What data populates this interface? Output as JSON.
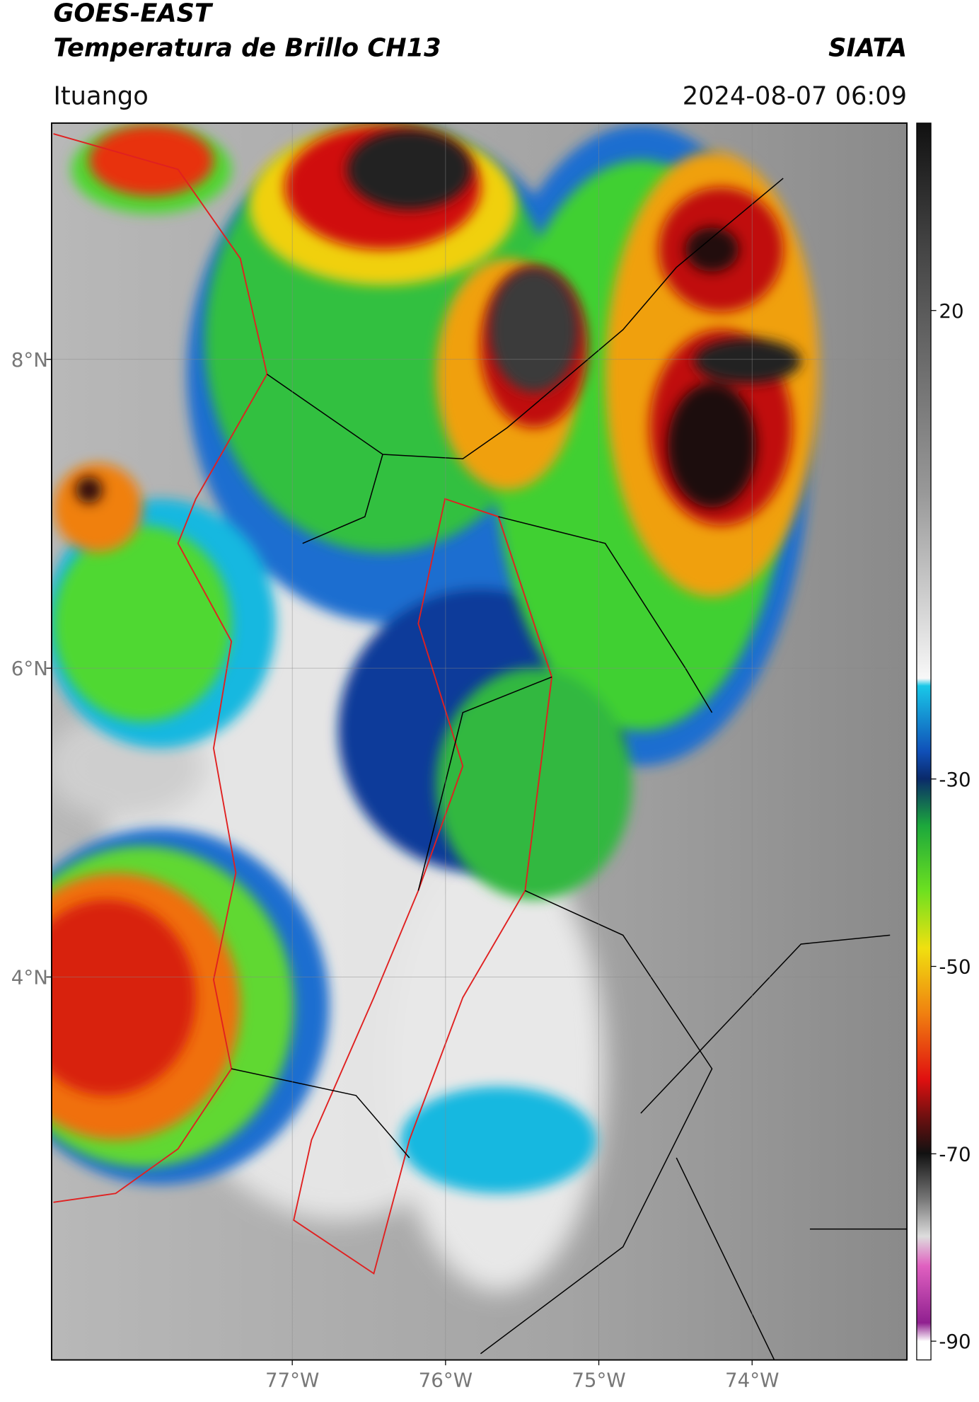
{
  "header": {
    "title": "GOES-EAST",
    "subtitle": "Temperatura de Brillo CH13",
    "source": "SIATA",
    "location": "Ituango",
    "timestamp": "2024-08-07 06:09"
  },
  "map": {
    "xlim": [
      -78.57,
      -72.99
    ],
    "ylim": [
      1.52,
      9.53
    ],
    "xticks": [
      {
        "value": -77,
        "label": "77°W"
      },
      {
        "value": -76,
        "label": "76°W"
      },
      {
        "value": -75,
        "label": "75°W"
      },
      {
        "value": -74,
        "label": "74°W"
      }
    ],
    "yticks": [
      {
        "value": 4,
        "label": "4°N"
      },
      {
        "value": 6,
        "label": "6°N"
      },
      {
        "value": 8,
        "label": "8°N"
      }
    ],
    "grid": true
  },
  "colorbar": {
    "lim": [
      -92,
      40
    ],
    "ticks": [
      -90,
      -70,
      -50,
      -30,
      20
    ]
  }
}
